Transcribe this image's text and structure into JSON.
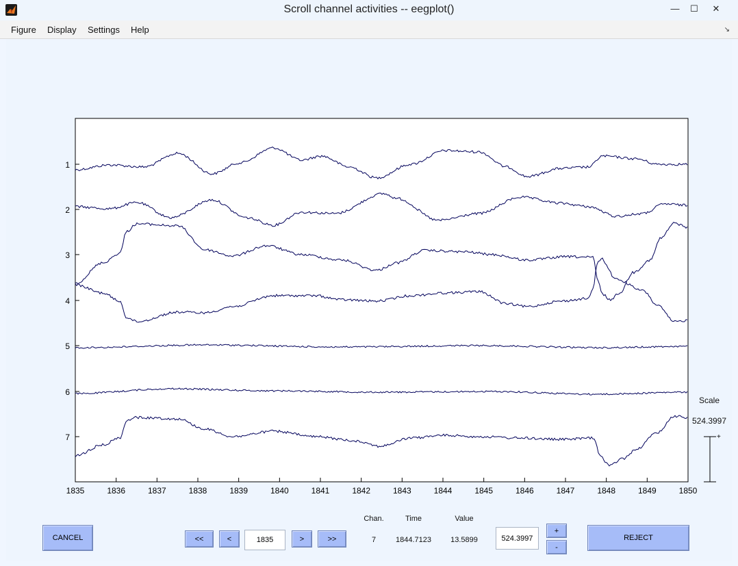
{
  "window": {
    "title": "Scroll channel activities -- eegplot()",
    "controls": {
      "minimize": "—",
      "maximize": "☐",
      "close": "✕"
    }
  },
  "menu": [
    "Figure",
    "Display",
    "Settings",
    "Help"
  ],
  "plot": {
    "channels": [
      "1",
      "2",
      "3",
      "4",
      "5",
      "6",
      "7"
    ],
    "x_ticks": [
      "1835",
      "1836",
      "1837",
      "1838",
      "1839",
      "1840",
      "1841",
      "1842",
      "1843",
      "1844",
      "1845",
      "1846",
      "1847",
      "1848",
      "1849",
      "1850"
    ],
    "line_color": "#00005a"
  },
  "scale": {
    "label": "Scale",
    "value": "524.3997"
  },
  "controls": {
    "cancel": "CANCEL",
    "first": "<<",
    "prev": "<",
    "position": "1835",
    "next": ">",
    "last": ">>",
    "chan_label": "Chan.",
    "time_label": "Time",
    "value_label": "Value",
    "chan_value": "7",
    "time_value": "1844.7123",
    "value_value": "13.5899",
    "scale_box": "524.3997",
    "plus": "+",
    "minus": "-",
    "reject": "REJECT"
  }
}
